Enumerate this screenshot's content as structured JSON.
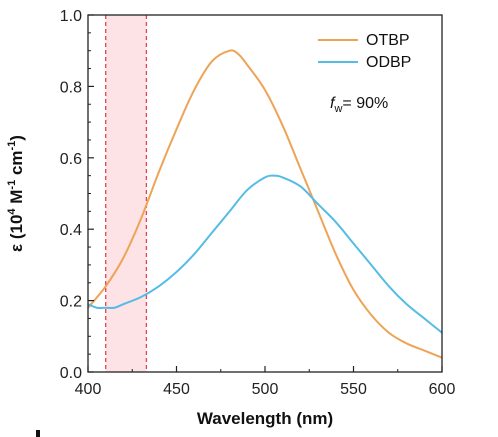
{
  "chart_data": {
    "type": "line",
    "title": "",
    "xlabel": "Wavelength (nm)",
    "ylabel": "ε (10⁴ M⁻¹ cm⁻¹)",
    "ylabel_parts": {
      "base": "ε (10",
      "exp1": "4",
      "mid": " M",
      "exp2": "-1",
      "mid2": " cm",
      "exp3": "-1",
      "end": ")"
    },
    "xlim": [
      400,
      600
    ],
    "ylim": [
      0.0,
      1.0
    ],
    "xticks": [
      400,
      450,
      500,
      550,
      600
    ],
    "xtick_labels": [
      "400",
      "450",
      "500",
      "550",
      "600"
    ],
    "yticks": [
      0.0,
      0.2,
      0.4,
      0.6,
      0.8,
      1.0
    ],
    "ytick_labels": [
      "0.0",
      "0.2",
      "0.4",
      "0.6",
      "0.8",
      "1.0"
    ],
    "grid": false,
    "legend_position": "top-right",
    "annotation": {
      "var": "f",
      "sub": "w",
      "rest": "= 90%"
    },
    "highlight_band": {
      "x_start": 410,
      "x_end": 433,
      "color": "#fde3e6",
      "edge_color": "#e0444e"
    },
    "series": [
      {
        "name": "OTBP",
        "color": "#eea357",
        "x": [
          400,
          410,
          420,
          430,
          440,
          450,
          460,
          470,
          480,
          485,
          490,
          500,
          510,
          520,
          530,
          540,
          550,
          560,
          570,
          580,
          590,
          600
        ],
        "y": [
          0.18,
          0.24,
          0.32,
          0.43,
          0.56,
          0.68,
          0.79,
          0.87,
          0.9,
          0.89,
          0.86,
          0.79,
          0.69,
          0.57,
          0.45,
          0.33,
          0.23,
          0.16,
          0.11,
          0.08,
          0.06,
          0.04
        ]
      },
      {
        "name": "ODBP",
        "color": "#55bce6",
        "x": [
          400,
          405,
          410,
          415,
          420,
          430,
          440,
          450,
          460,
          470,
          480,
          490,
          500,
          505,
          510,
          520,
          530,
          540,
          550,
          560,
          570,
          580,
          590,
          600
        ],
        "y": [
          0.19,
          0.18,
          0.18,
          0.18,
          0.19,
          0.21,
          0.24,
          0.28,
          0.33,
          0.39,
          0.45,
          0.51,
          0.545,
          0.55,
          0.545,
          0.52,
          0.47,
          0.42,
          0.36,
          0.3,
          0.24,
          0.19,
          0.15,
          0.11
        ]
      }
    ]
  }
}
